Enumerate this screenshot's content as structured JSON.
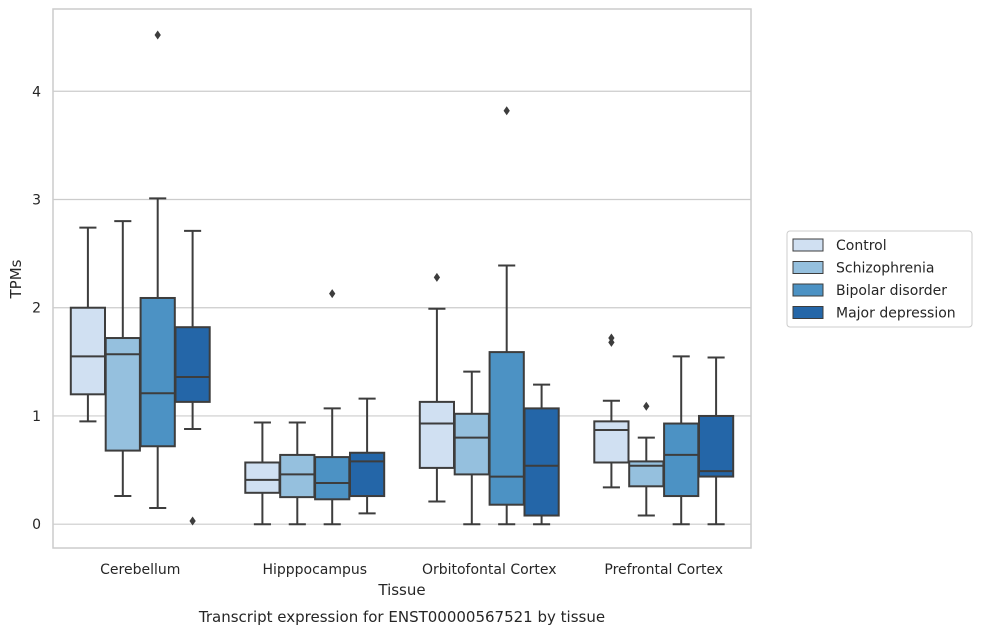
{
  "chart_data": {
    "type": "box",
    "title": "",
    "caption": "Transcript expression for ENST00000567521 by tissue",
    "xlabel": "Tissue",
    "ylabel": "TPMs",
    "ylim": [
      -0.22,
      4.76
    ],
    "yticks": [
      0,
      1,
      2,
      3,
      4
    ],
    "grid": "horizontal",
    "legend_position": "right",
    "categories": [
      "Cerebellum",
      "Hipppocampus",
      "Orbitofontal Cortex",
      "Prefrontal Cortex"
    ],
    "series": [
      {
        "name": "Control",
        "color": "#d0e0f2",
        "boxes": [
          {
            "whislo": 0.95,
            "q1": 1.2,
            "med": 1.55,
            "q3": 2.0,
            "whishi": 2.74,
            "fliers": []
          },
          {
            "whislo": 0.0,
            "q1": 0.29,
            "med": 0.41,
            "q3": 0.57,
            "whishi": 0.94,
            "fliers": []
          },
          {
            "whislo": 0.21,
            "q1": 0.52,
            "med": 0.93,
            "q3": 1.13,
            "whishi": 1.99,
            "fliers": [
              2.28
            ]
          },
          {
            "whislo": 0.34,
            "q1": 0.57,
            "med": 0.87,
            "q3": 0.95,
            "whishi": 1.14,
            "fliers": [
              1.68,
              1.72
            ]
          }
        ]
      },
      {
        "name": "Schizophrenia",
        "color": "#95c0de",
        "boxes": [
          {
            "whislo": 0.26,
            "q1": 0.68,
            "med": 1.57,
            "q3": 1.72,
            "whishi": 2.8,
            "fliers": []
          },
          {
            "whislo": 0.0,
            "q1": 0.25,
            "med": 0.46,
            "q3": 0.64,
            "whishi": 0.94,
            "fliers": []
          },
          {
            "whislo": 0.0,
            "q1": 0.46,
            "med": 0.8,
            "q3": 1.02,
            "whishi": 1.41,
            "fliers": []
          },
          {
            "whislo": 0.08,
            "q1": 0.35,
            "med": 0.54,
            "q3": 0.58,
            "whishi": 0.8,
            "fliers": [
              1.09
            ]
          }
        ]
      },
      {
        "name": "Bipolar disorder",
        "color": "#4c92c4",
        "boxes": [
          {
            "whislo": 0.15,
            "q1": 0.72,
            "med": 1.21,
            "q3": 2.09,
            "whishi": 3.01,
            "fliers": [
              4.52
            ]
          },
          {
            "whislo": 0.0,
            "q1": 0.23,
            "med": 0.38,
            "q3": 0.62,
            "whishi": 1.07,
            "fliers": [
              2.13
            ]
          },
          {
            "whislo": 0.0,
            "q1": 0.18,
            "med": 0.44,
            "q3": 1.59,
            "whishi": 2.39,
            "fliers": [
              3.82
            ]
          },
          {
            "whislo": 0.0,
            "q1": 0.26,
            "med": 0.64,
            "q3": 0.93,
            "whishi": 1.55,
            "fliers": []
          }
        ]
      },
      {
        "name": "Major depression",
        "color": "#2466a8",
        "boxes": [
          {
            "whislo": 0.88,
            "q1": 1.13,
            "med": 1.36,
            "q3": 1.82,
            "whishi": 2.71,
            "fliers": [
              0.03
            ]
          },
          {
            "whislo": 0.1,
            "q1": 0.26,
            "med": 0.58,
            "q3": 0.66,
            "whishi": 1.16,
            "fliers": []
          },
          {
            "whislo": 0.0,
            "q1": 0.08,
            "med": 0.54,
            "q3": 1.07,
            "whishi": 1.29,
            "fliers": []
          },
          {
            "whislo": 0.0,
            "q1": 0.44,
            "med": 0.49,
            "q3": 1.0,
            "whishi": 1.54,
            "fliers": []
          }
        ]
      }
    ]
  }
}
